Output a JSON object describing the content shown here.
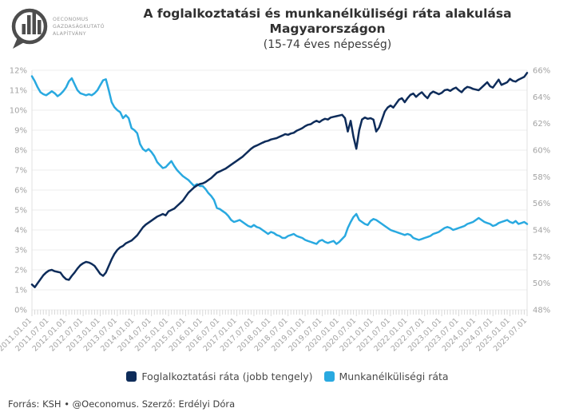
{
  "logo": {
    "org_line1": "OECONOMUS",
    "org_line2": "GAZDASÁGKUTATÓ",
    "org_line3": "ALAPÍTVÁNY"
  },
  "header": {
    "title_line1": "A foglalkoztatási és munkanélküliségi ráta alakulása",
    "title_line2": "Magyarországon",
    "subtitle": "(15-74 éves népesség)"
  },
  "colors": {
    "employment": "#0e2c5a",
    "unemployment": "#29a9e0",
    "grid": "#ececec",
    "axis_border": "#e0e0e0",
    "tick": "#d8d8d8",
    "axis_label": "#a3a3a3"
  },
  "chart_data": {
    "type": "line",
    "title": "A foglalkoztatási és munkanélküliségi ráta alakulása Magyarországon (15-74 éves népesség)",
    "x_start": "2011-01",
    "x_step": "month",
    "grid": "horizontal",
    "legend_position": "bottom",
    "left_axis": {
      "min": 0,
      "max": 12,
      "step": 1,
      "unit": "%"
    },
    "right_axis": {
      "min": 48,
      "max": 66,
      "step": 2,
      "unit": "%"
    },
    "x_tick_labels": [
      "2011.01.01",
      "2011.07.01",
      "2012.01.01",
      "2012.07.01",
      "2013.01.01",
      "2013.07.01",
      "2014.01.01",
      "2014.07.01",
      "2015.01.01",
      "2015.07.01",
      "2016.01.01",
      "2016.07.01",
      "2017.01.01",
      "2017.07.01",
      "2018.01.01",
      "2018.07.01",
      "2019.01.01",
      "2019.07.01",
      "2020.01.01",
      "2020.07.01",
      "2021.01.01",
      "2021.07.01",
      "2022.01.01",
      "2022.07.01",
      "2023.01.01",
      "2023.07.01",
      "2024.01.01",
      "2024.07.01",
      "2025.01.01",
      "2025.07.01"
    ],
    "x_major_tick_every": 6,
    "series": [
      {
        "name": "Foglalkoztatási ráta (jobb tengely)",
        "axis": "right",
        "color": "#0e2c5a",
        "values": [
          49.9,
          49.7,
          50.0,
          50.3,
          50.6,
          50.8,
          50.95,
          51.0,
          50.9,
          50.85,
          50.8,
          50.5,
          50.3,
          50.25,
          50.55,
          50.8,
          51.1,
          51.35,
          51.5,
          51.6,
          51.55,
          51.45,
          51.3,
          51.0,
          50.7,
          50.55,
          50.8,
          51.3,
          51.8,
          52.2,
          52.5,
          52.7,
          52.8,
          53.0,
          53.1,
          53.2,
          53.4,
          53.6,
          53.9,
          54.2,
          54.4,
          54.55,
          54.7,
          54.85,
          55.0,
          55.1,
          55.2,
          55.1,
          55.4,
          55.5,
          55.6,
          55.8,
          56.0,
          56.2,
          56.5,
          56.8,
          57.0,
          57.2,
          57.35,
          57.45,
          57.5,
          57.6,
          57.75,
          57.9,
          58.1,
          58.3,
          58.4,
          58.5,
          58.6,
          58.75,
          58.9,
          59.05,
          59.2,
          59.35,
          59.5,
          59.7,
          59.9,
          60.1,
          60.25,
          60.35,
          60.45,
          60.55,
          60.65,
          60.7,
          60.8,
          60.85,
          60.9,
          61.0,
          61.1,
          61.2,
          61.15,
          61.25,
          61.3,
          61.45,
          61.55,
          61.65,
          61.8,
          61.9,
          61.95,
          62.1,
          62.2,
          62.1,
          62.25,
          62.35,
          62.3,
          62.45,
          62.5,
          62.55,
          62.6,
          62.65,
          62.4,
          61.4,
          62.2,
          61.0,
          60.1,
          61.5,
          62.3,
          62.45,
          62.35,
          62.4,
          62.3,
          61.4,
          61.7,
          62.3,
          62.9,
          63.2,
          63.35,
          63.2,
          63.5,
          63.8,
          63.9,
          63.6,
          63.9,
          64.15,
          64.25,
          64.0,
          64.2,
          64.35,
          64.1,
          63.9,
          64.25,
          64.4,
          64.3,
          64.2,
          64.3,
          64.5,
          64.55,
          64.45,
          64.6,
          64.7,
          64.5,
          64.35,
          64.6,
          64.75,
          64.7,
          64.6,
          64.55,
          64.5,
          64.7,
          64.9,
          65.1,
          64.8,
          64.7,
          65.0,
          65.3,
          64.9,
          65.0,
          65.1,
          65.35,
          65.2,
          65.15,
          65.3,
          65.4,
          65.5,
          65.8
        ]
      },
      {
        "name": "Munkanélküliségi ráta",
        "axis": "left",
        "color": "#29a9e0",
        "values": [
          11.7,
          11.45,
          11.15,
          10.9,
          10.8,
          10.75,
          10.85,
          10.95,
          10.85,
          10.7,
          10.8,
          10.95,
          11.15,
          11.45,
          11.6,
          11.3,
          11.0,
          10.85,
          10.8,
          10.75,
          10.8,
          10.75,
          10.85,
          11.0,
          11.25,
          11.5,
          11.55,
          11.0,
          10.4,
          10.15,
          10.0,
          9.9,
          9.6,
          9.75,
          9.6,
          9.1,
          9.0,
          8.85,
          8.3,
          8.05,
          7.95,
          8.05,
          7.9,
          7.7,
          7.4,
          7.25,
          7.1,
          7.15,
          7.3,
          7.45,
          7.2,
          7.0,
          6.85,
          6.7,
          6.6,
          6.5,
          6.35,
          6.2,
          6.3,
          6.2,
          6.2,
          6.05,
          5.85,
          5.7,
          5.5,
          5.1,
          5.05,
          4.95,
          4.85,
          4.7,
          4.5,
          4.4,
          4.45,
          4.5,
          4.4,
          4.3,
          4.2,
          4.15,
          4.25,
          4.15,
          4.1,
          4.0,
          3.9,
          3.8,
          3.9,
          3.85,
          3.75,
          3.7,
          3.6,
          3.6,
          3.7,
          3.75,
          3.8,
          3.7,
          3.65,
          3.6,
          3.5,
          3.45,
          3.4,
          3.35,
          3.3,
          3.45,
          3.5,
          3.4,
          3.35,
          3.4,
          3.45,
          3.3,
          3.4,
          3.55,
          3.7,
          4.1,
          4.4,
          4.65,
          4.8,
          4.5,
          4.4,
          4.3,
          4.25,
          4.45,
          4.55,
          4.5,
          4.4,
          4.3,
          4.2,
          4.1,
          4.0,
          3.95,
          3.9,
          3.85,
          3.8,
          3.75,
          3.8,
          3.75,
          3.6,
          3.55,
          3.5,
          3.55,
          3.6,
          3.65,
          3.7,
          3.8,
          3.85,
          3.9,
          4.0,
          4.1,
          4.15,
          4.1,
          4.0,
          4.05,
          4.1,
          4.15,
          4.2,
          4.3,
          4.35,
          4.4,
          4.5,
          4.6,
          4.5,
          4.4,
          4.35,
          4.3,
          4.2,
          4.25,
          4.35,
          4.4,
          4.45,
          4.5,
          4.4,
          4.35,
          4.45,
          4.3,
          4.35,
          4.4,
          4.3
        ]
      }
    ]
  },
  "legend": {
    "items": [
      {
        "label": "Foglalkoztatási ráta (jobb tengely)",
        "color": "#0e2c5a"
      },
      {
        "label": "Munkanélküliségi ráta",
        "color": "#29a9e0"
      }
    ]
  },
  "footer": {
    "source_text": "Forrás: KSH • @Oeconomus. Szerző: Erdélyi Dóra"
  }
}
